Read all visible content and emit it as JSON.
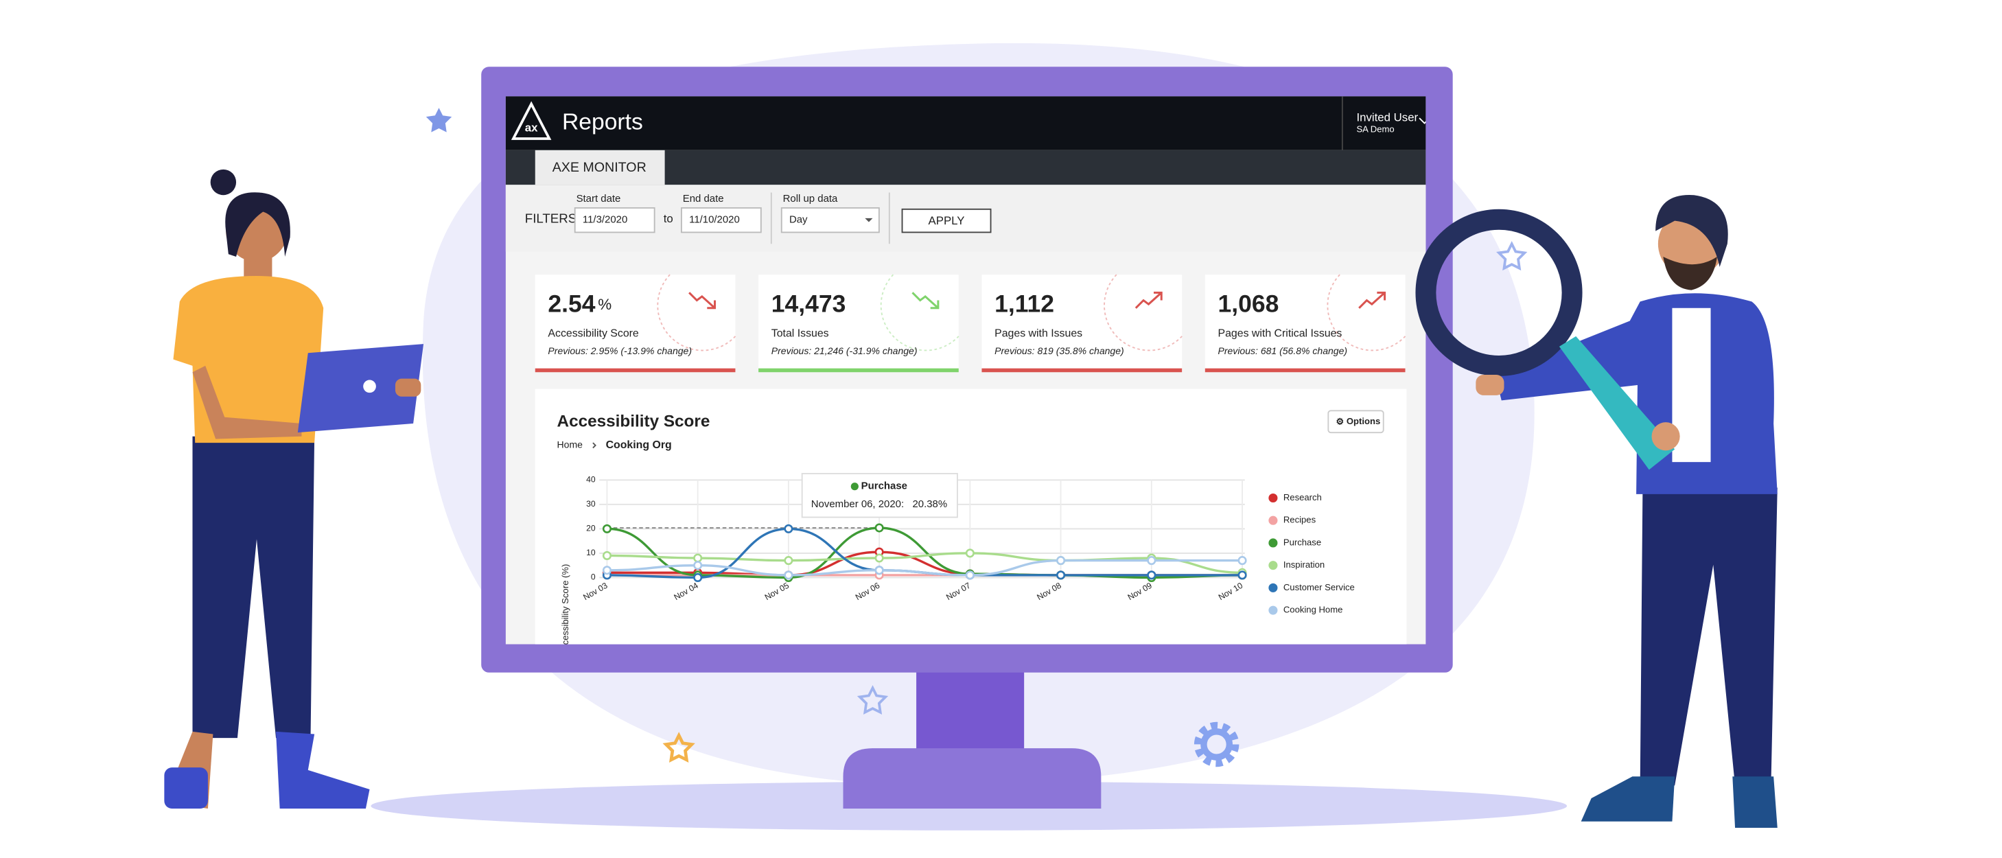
{
  "header": {
    "logo": "ax",
    "title": "Reports",
    "user": "Invited User",
    "org": "SA Demo",
    "tab": "AXE MONITOR"
  },
  "filters": {
    "label": "FILTERS",
    "start_label": "Start date",
    "start": "11/3/2020",
    "to": "to",
    "end_label": "End date",
    "end": "11/10/2020",
    "rollup_label": "Roll up data",
    "rollup": "Day",
    "apply": "APPLY"
  },
  "cards": [
    {
      "value": "2.54",
      "unit": "%",
      "label": "Accessibility Score",
      "previous": "Previous: 2.95% (-13.9% change)",
      "trend": "down",
      "color": "#d9534f"
    },
    {
      "value": "14,473",
      "label": "Total Issues",
      "previous": "Previous: 21,246 (-31.9% change)",
      "trend": "down",
      "color": "#7fd36b"
    },
    {
      "value": "1,112",
      "label": "Pages with Issues",
      "previous": "Previous: 819 (35.8% change)",
      "trend": "up",
      "color": "#d9534f"
    },
    {
      "value": "1,068",
      "label": "Pages with Critical Issues",
      "previous": "Previous: 681 (56.8% change)",
      "trend": "up",
      "color": "#d9534f"
    }
  ],
  "chart": {
    "type": "line",
    "title": "Accessibility Score",
    "options": "Options",
    "breadcrumb": [
      "Home",
      "Cooking Org"
    ],
    "y_label": "Accessibility Score (%)",
    "categories": [
      "Nov 03",
      "Nov 04",
      "Nov 05",
      "Nov 06",
      "Nov 07",
      "Nov 08",
      "Nov 09",
      "Nov 10"
    ],
    "ylim": [
      0,
      40
    ],
    "yticks": [
      0,
      10,
      20,
      30,
      40
    ],
    "grid": true,
    "series": [
      {
        "name": "Research",
        "color": "#d32f2f",
        "values": [
          2,
          2,
          1,
          10.5,
          1.5,
          1,
          1,
          1
        ]
      },
      {
        "name": "Recipes",
        "color": "#f3a3a3",
        "values": [
          1,
          1,
          1,
          1,
          1,
          1,
          0.5,
          1
        ]
      },
      {
        "name": "Purchase",
        "color": "#3e9a35",
        "values": [
          20,
          1,
          0,
          20.38,
          1.5,
          1,
          0,
          1
        ]
      },
      {
        "name": "Inspiration",
        "color": "#a9dc8c",
        "values": [
          9,
          8,
          7,
          8,
          10,
          7,
          8,
          2
        ]
      },
      {
        "name": "Customer Service",
        "color": "#2e75b6",
        "values": [
          1,
          0,
          20,
          3,
          1,
          1,
          1,
          1
        ]
      },
      {
        "name": "Cooking Home",
        "color": "#a9c9ea",
        "values": [
          3,
          5,
          1,
          3,
          1,
          7,
          7,
          7
        ]
      }
    ],
    "tooltip": {
      "series": "Purchase",
      "date": "November 06, 2020:",
      "value": "20.38%"
    }
  }
}
